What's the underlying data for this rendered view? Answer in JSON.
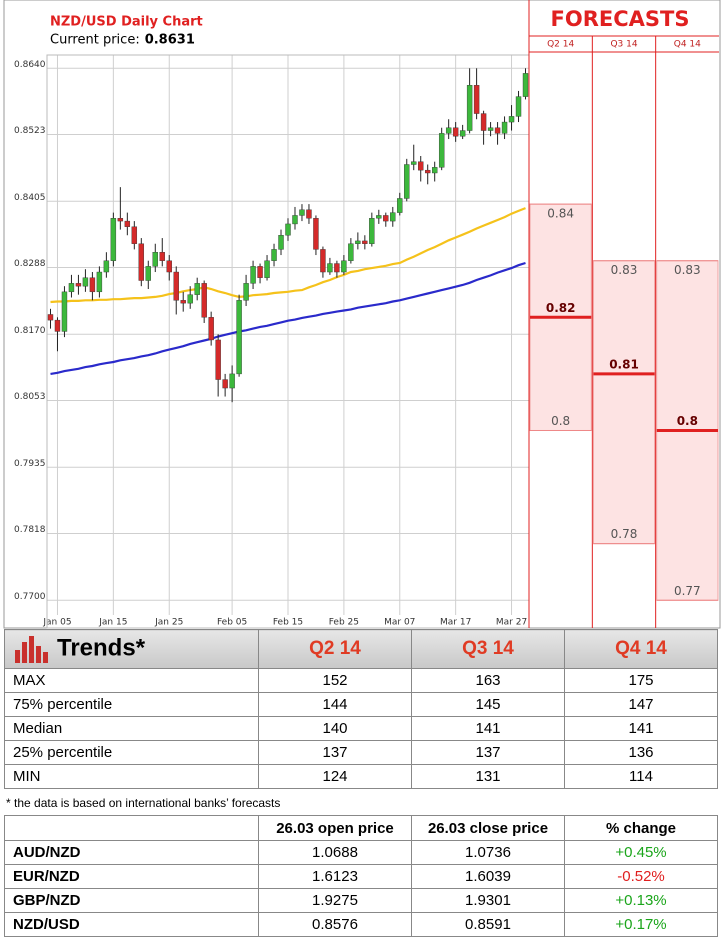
{
  "chart_data": [
    {
      "type": "candlestick",
      "title": "NZD/USD Daily Chart",
      "subtitle": "Current price:",
      "current_price": 0.8631,
      "categories": [
        null,
        "Jan 05",
        null,
        null,
        null,
        null,
        null,
        null,
        null,
        "Jan 15",
        null,
        null,
        null,
        null,
        null,
        null,
        null,
        "Jan 25",
        null,
        null,
        null,
        null,
        null,
        null,
        null,
        null,
        "Feb 05",
        null,
        null,
        null,
        null,
        null,
        null,
        null,
        "Feb 15",
        null,
        null,
        null,
        null,
        null,
        null,
        null,
        "Feb 25",
        null,
        null,
        null,
        null,
        null,
        null,
        null,
        "Mar 07",
        null,
        null,
        null,
        null,
        null,
        null,
        null,
        "Mar 17",
        null,
        null,
        null,
        null,
        null,
        null,
        null,
        "Mar 27",
        null,
        null
      ],
      "open": [
        0.8205,
        0.8195,
        0.8175,
        0.8245,
        0.826,
        0.8255,
        0.827,
        0.8245,
        0.828,
        0.83,
        0.8375,
        0.837,
        0.836,
        0.833,
        0.8265,
        0.829,
        0.8315,
        0.83,
        0.828,
        0.823,
        0.8225,
        0.824,
        0.826,
        0.82,
        0.816,
        0.809,
        0.8075,
        0.81,
        0.823,
        0.826,
        0.829,
        0.827,
        0.83,
        0.832,
        0.8345,
        0.8365,
        0.838,
        0.839,
        0.8375,
        0.832,
        0.828,
        0.8295,
        0.828,
        0.83,
        0.833,
        0.8335,
        0.833,
        0.8375,
        0.838,
        0.837,
        0.8385,
        0.841,
        0.847,
        0.8475,
        0.846,
        0.8455,
        0.8465,
        0.8525,
        0.8535,
        0.852,
        0.853,
        0.861,
        0.856,
        0.853,
        0.8535,
        0.8525,
        0.8545,
        0.8555,
        0.859
      ],
      "high": [
        0.8215,
        0.82,
        0.8255,
        0.8275,
        0.8275,
        0.8285,
        0.828,
        0.829,
        0.8315,
        0.8385,
        0.843,
        0.8385,
        0.837,
        0.834,
        0.83,
        0.833,
        0.834,
        0.831,
        0.829,
        0.8245,
        0.8255,
        0.827,
        0.8265,
        0.821,
        0.817,
        0.81,
        0.8115,
        0.824,
        0.8275,
        0.83,
        0.8295,
        0.831,
        0.833,
        0.8355,
        0.8375,
        0.8395,
        0.84,
        0.84,
        0.838,
        0.8325,
        0.8305,
        0.83,
        0.831,
        0.834,
        0.835,
        0.8345,
        0.8385,
        0.839,
        0.8385,
        0.8395,
        0.842,
        0.848,
        0.8505,
        0.8485,
        0.847,
        0.8475,
        0.8535,
        0.855,
        0.8545,
        0.854,
        0.864,
        0.864,
        0.8565,
        0.8545,
        0.8545,
        0.8555,
        0.8575,
        0.86,
        0.864
      ],
      "low": [
        0.818,
        0.814,
        0.8165,
        0.8235,
        0.824,
        0.8245,
        0.823,
        0.8235,
        0.827,
        0.829,
        0.8355,
        0.8345,
        0.832,
        0.8255,
        0.825,
        0.828,
        0.829,
        0.8265,
        0.8205,
        0.821,
        0.8215,
        0.823,
        0.819,
        0.815,
        0.806,
        0.806,
        0.805,
        0.8095,
        0.822,
        0.825,
        0.826,
        0.8265,
        0.829,
        0.831,
        0.8335,
        0.8355,
        0.837,
        0.8365,
        0.831,
        0.827,
        0.8275,
        0.827,
        0.8275,
        0.8295,
        0.832,
        0.832,
        0.8325,
        0.8365,
        0.836,
        0.836,
        0.838,
        0.8405,
        0.846,
        0.844,
        0.8435,
        0.844,
        0.846,
        0.8515,
        0.851,
        0.8515,
        0.8525,
        0.855,
        0.8505,
        0.852,
        0.8505,
        0.8515,
        0.853,
        0.8545,
        0.8585
      ],
      "close": [
        0.8195,
        0.8175,
        0.8245,
        0.826,
        0.8255,
        0.827,
        0.8245,
        0.828,
        0.83,
        0.8375,
        0.837,
        0.836,
        0.833,
        0.8265,
        0.829,
        0.8315,
        0.83,
        0.828,
        0.823,
        0.8225,
        0.824,
        0.826,
        0.82,
        0.816,
        0.809,
        0.8075,
        0.81,
        0.823,
        0.826,
        0.829,
        0.827,
        0.83,
        0.832,
        0.8345,
        0.8365,
        0.838,
        0.839,
        0.8375,
        0.832,
        0.828,
        0.8295,
        0.828,
        0.83,
        0.833,
        0.8335,
        0.833,
        0.8375,
        0.838,
        0.837,
        0.8385,
        0.841,
        0.847,
        0.8475,
        0.846,
        0.8455,
        0.8465,
        0.8525,
        0.8535,
        0.852,
        0.853,
        0.861,
        0.856,
        0.853,
        0.8535,
        0.8525,
        0.8545,
        0.8555,
        0.859,
        0.8631
      ],
      "up_color": "#3cb83c",
      "down_color": "#d42a2a",
      "series": [
        {
          "type": "line",
          "color": "#f5c21b",
          "values": [
            0.8227,
            0.8228,
            0.8228,
            0.8229,
            0.8229,
            0.823,
            0.823,
            0.8231,
            0.8231,
            0.8232,
            0.8232,
            0.8233,
            0.8234,
            0.8234,
            0.8235,
            0.8236,
            0.8238,
            0.8241,
            0.8243,
            0.8246,
            0.8248,
            0.825,
            0.8253,
            0.825,
            0.8246,
            0.8243,
            0.8239,
            0.8236,
            0.8237,
            0.8239,
            0.824,
            0.8241,
            0.8243,
            0.8244,
            0.8245,
            0.8247,
            0.8248,
            0.8253,
            0.8257,
            0.8262,
            0.8266,
            0.8271,
            0.8275,
            0.828,
            0.8282,
            0.8285,
            0.8287,
            0.8289,
            0.8291,
            0.8294,
            0.8296,
            0.8302,
            0.8307,
            0.8313,
            0.8319,
            0.8324,
            0.833,
            0.8336,
            0.8341,
            0.8346,
            0.8351,
            0.8357,
            0.8362,
            0.8367,
            0.8372,
            0.8377,
            0.8383,
            0.8388,
            0.8393
          ]
        },
        {
          "type": "line",
          "color": "#2a2acb",
          "values": [
            0.81,
            0.8102,
            0.8105,
            0.8107,
            0.8109,
            0.8112,
            0.8114,
            0.8117,
            0.8119,
            0.8121,
            0.8124,
            0.8126,
            0.8128,
            0.8131,
            0.8133,
            0.8136,
            0.814,
            0.8143,
            0.8146,
            0.8149,
            0.8153,
            0.8156,
            0.8159,
            0.8162,
            0.8166,
            0.8169,
            0.8172,
            0.8175,
            0.8177,
            0.818,
            0.8183,
            0.8185,
            0.8188,
            0.8191,
            0.8194,
            0.8196,
            0.8199,
            0.8201,
            0.8203,
            0.8206,
            0.8208,
            0.821,
            0.8212,
            0.8214,
            0.8217,
            0.8219,
            0.8221,
            0.8223,
            0.8225,
            0.8228,
            0.823,
            0.8233,
            0.8236,
            0.8239,
            0.8242,
            0.8245,
            0.8248,
            0.8251,
            0.8254,
            0.8257,
            0.8261,
            0.8266,
            0.827,
            0.8274,
            0.8279,
            0.8283,
            0.8287,
            0.8292,
            0.8296
          ]
        }
      ],
      "ylim": [
        0.7651,
        0.869
      ],
      "yticks": [
        {
          "value": 0.864,
          "label": "0.8640"
        },
        0.8523,
        0.8405,
        0.8288,
        {
          "value": 0.817,
          "label": "0.8170"
        },
        0.8053,
        0.7935,
        0.7818,
        {
          "value": 0.77,
          "label": "0.7700"
        }
      ],
      "grid": true
    },
    {
      "type": "range",
      "title": "FORECASTS",
      "categories": [
        "Q2 14",
        "Q3 14",
        "Q4 14"
      ],
      "high": [
        0.84,
        0.83,
        0.83
      ],
      "median": [
        0.82,
        0.81,
        0.8
      ],
      "low": [
        0.8,
        0.78,
        0.77
      ],
      "color": "#e02020",
      "ylim": [
        0.7651,
        0.869
      ]
    }
  ],
  "trends": {
    "title": "Trends*",
    "columns": [
      "Q2 14",
      "Q3 14",
      "Q4 14"
    ],
    "rows": [
      [
        "MAX",
        152,
        163,
        175
      ],
      [
        "75% percentile",
        144,
        145,
        147
      ],
      [
        "Median",
        140,
        141,
        141
      ],
      [
        "25% percentile",
        137,
        137,
        136
      ],
      [
        "MIN",
        124,
        131,
        114
      ]
    ]
  },
  "note": "* the data is based on international banks’ forecasts",
  "prices": {
    "columns": [
      "26.03 open price",
      "26.03 close price",
      "% change"
    ],
    "rows": [
      [
        "AUD/NZD",
        1.0688,
        1.0736,
        "+0.45%"
      ],
      [
        "EUR/NZD",
        1.6123,
        1.6039,
        "-0.52%"
      ],
      [
        "GBP/NZD",
        1.9275,
        1.9301,
        "+0.13%"
      ],
      [
        "NZD/USD",
        0.8576,
        0.8591,
        "+0.17%"
      ]
    ]
  }
}
